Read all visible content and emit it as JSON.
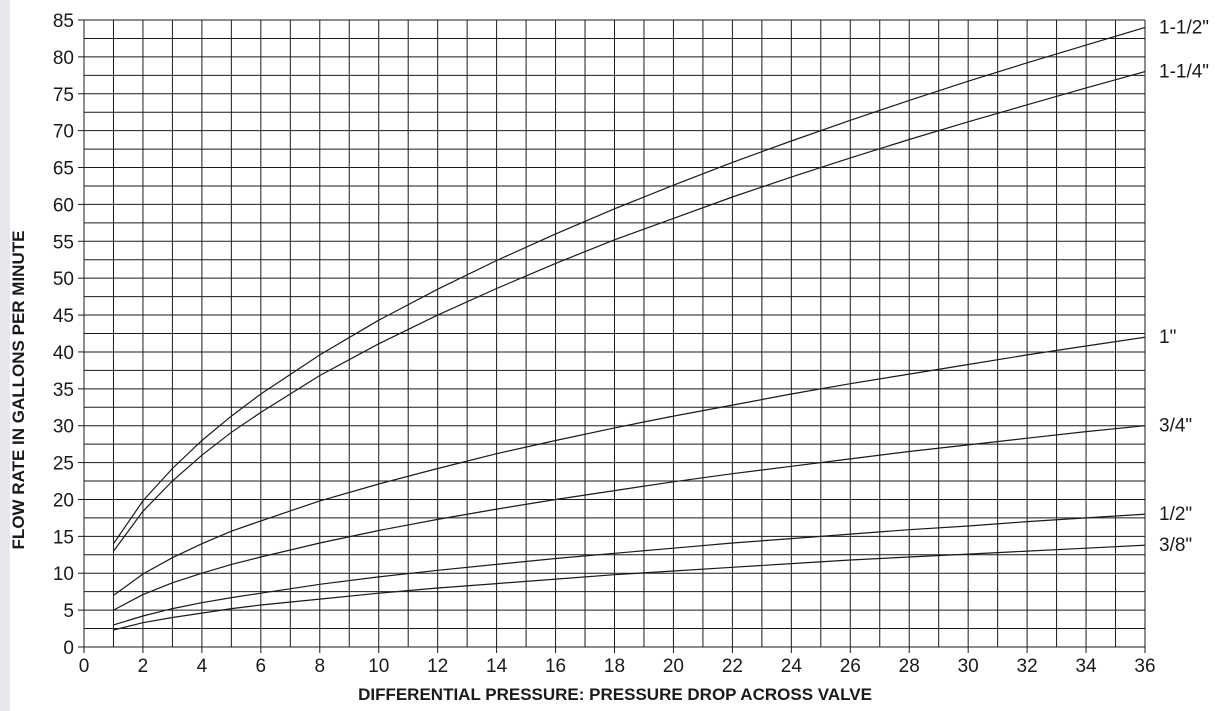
{
  "chart_data": {
    "type": "line",
    "xlabel": "DIFFERENTIAL PRESSURE: PRESSURE DROP ACROSS VALVE",
    "ylabel": "FLOW RATE IN GALLONS PER MINUTE",
    "xlim": [
      0,
      36
    ],
    "ylim": [
      0,
      85
    ],
    "x_ticks": [
      "0",
      "2",
      "4",
      "6",
      "8",
      "10",
      "12",
      "14",
      "16",
      "18",
      "20",
      "22",
      "24",
      "26",
      "28",
      "30",
      "32",
      "34",
      "36"
    ],
    "y_ticks": [
      "0",
      "5",
      "10",
      "15",
      "20",
      "25",
      "30",
      "35",
      "40",
      "45",
      "50",
      "55",
      "60",
      "65",
      "70",
      "75",
      "80",
      "85"
    ],
    "grid": "on",
    "grid_x_step": 1,
    "grid_y_step": 2.5,
    "line_color": "#1a1a1a",
    "x": [
      1,
      2,
      3,
      4,
      5,
      6,
      8,
      10,
      12,
      14,
      16,
      18,
      20,
      22,
      24,
      26,
      28,
      30,
      32,
      34,
      36
    ],
    "series": [
      {
        "name": "1-1/2\"",
        "values": [
          14,
          19.8,
          24.2,
          28,
          31.3,
          34.3,
          39.6,
          44.3,
          48.5,
          52.4,
          56,
          59.4,
          62.6,
          65.7,
          68.6,
          71.4,
          74.1,
          76.7,
          79.2,
          81.6,
          84
        ]
      },
      {
        "name": "1-1/4\"",
        "values": [
          13,
          18.4,
          22.5,
          26,
          29.1,
          31.8,
          36.8,
          41.1,
          45,
          48.6,
          52,
          55.2,
          58.1,
          61,
          63.7,
          66.3,
          68.8,
          71.2,
          73.5,
          75.8,
          78
        ]
      },
      {
        "name": "1\"",
        "values": [
          7,
          9.9,
          12.1,
          14,
          15.7,
          17.1,
          19.8,
          22.1,
          24.2,
          26.2,
          28,
          29.7,
          31.3,
          32.8,
          34.3,
          35.7,
          37,
          38.3,
          39.6,
          40.8,
          42
        ]
      },
      {
        "name": "3/4\"",
        "values": [
          5,
          7.1,
          8.7,
          10,
          11.2,
          12.2,
          14.1,
          15.8,
          17.3,
          18.7,
          20,
          21.2,
          22.4,
          23.5,
          24.5,
          25.5,
          26.5,
          27.4,
          28.3,
          29.2,
          30
        ]
      },
      {
        "name": "1/2\"",
        "values": [
          3,
          4.2,
          5.2,
          6,
          6.7,
          7.3,
          8.5,
          9.5,
          10.4,
          11.2,
          12,
          12.7,
          13.4,
          14.1,
          14.7,
          15.3,
          15.9,
          16.4,
          17,
          17.5,
          18
        ]
      },
      {
        "name": "3/8\"",
        "values": [
          2.3,
          3.3,
          4,
          4.6,
          5.2,
          5.7,
          6.5,
          7.3,
          8,
          8.6,
          9.2,
          9.8,
          10.3,
          10.8,
          11.3,
          11.8,
          12.2,
          12.6,
          13,
          13.4,
          13.8
        ]
      }
    ]
  }
}
